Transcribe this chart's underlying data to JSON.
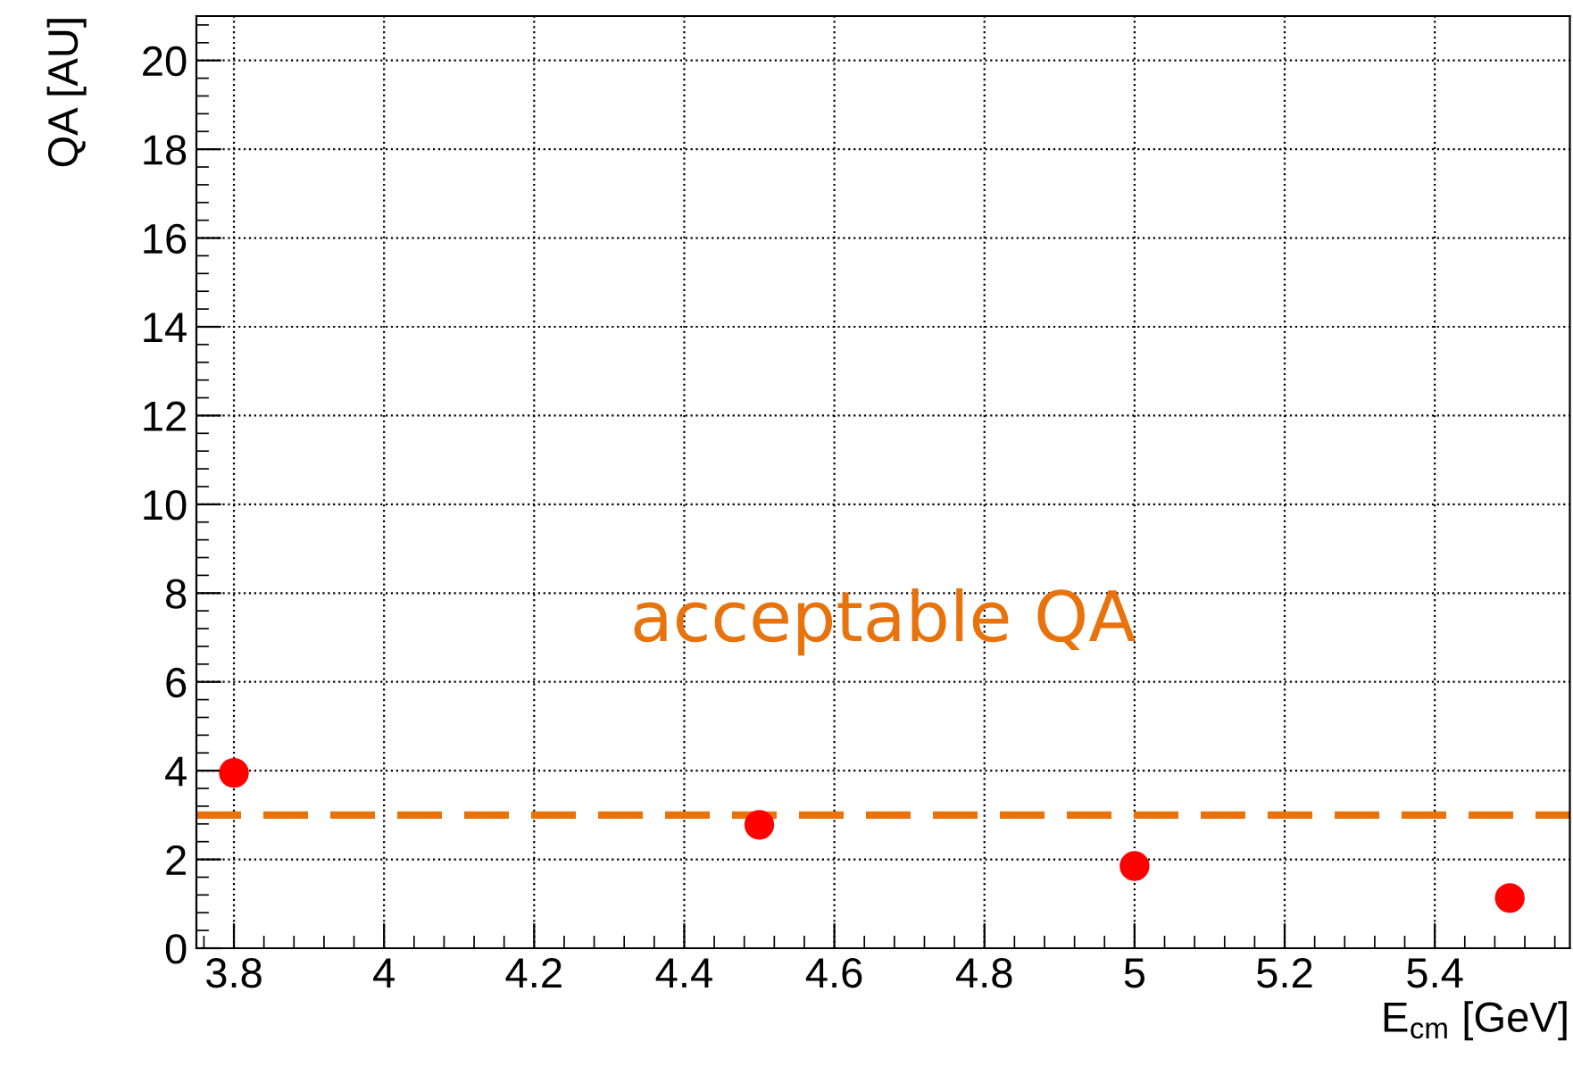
{
  "chart_data": {
    "type": "scatter",
    "xlabel": "E$_{cm}$ [GeV]",
    "ylabel": "QA [AU]",
    "x": [
      3.8,
      4.5,
      5.0,
      5.5
    ],
    "series": [
      {
        "color": "#ff0000",
        "values": [
          3.95,
          2.78,
          1.85,
          1.13
        ]
      }
    ],
    "marker": "circle",
    "xlim": [
      3.75,
      5.58
    ],
    "xticks": [
      {
        "value": 3.8,
        "label": "3.8"
      },
      4,
      4.2,
      4.4,
      4.6,
      4.8,
      5,
      5.2,
      5.4
    ],
    "ylim": [
      0,
      21
    ],
    "yticks": [
      0,
      2,
      4,
      6,
      8,
      10,
      12,
      14,
      16,
      18,
      20
    ],
    "grid": true,
    "ref_lines": [
      {
        "axis": "y",
        "value": 3,
        "label": "acceptable QA",
        "color": "#e8720c",
        "line_style": "dashed"
      }
    ]
  }
}
